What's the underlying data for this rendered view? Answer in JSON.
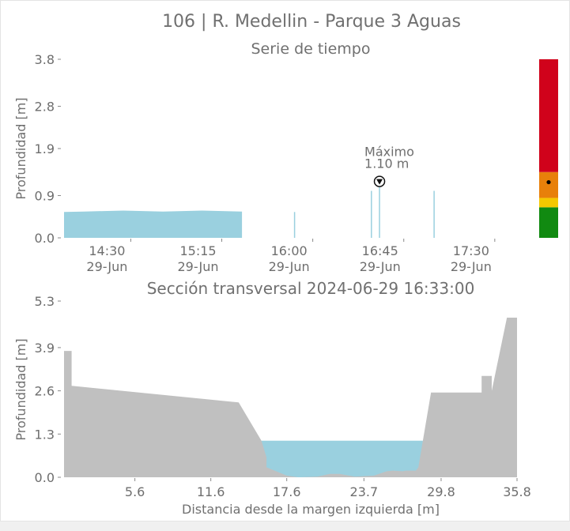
{
  "title": "106 | R. Medellin - Parque 3 Aguas",
  "chart_data": [
    {
      "type": "area",
      "title": "Serie de tiempo",
      "ylabel": "Profundidad [m]",
      "xlabel": "",
      "ylim": [
        0.0,
        3.8
      ],
      "yticks": [
        "0.0",
        "0.9",
        "1.9",
        "2.8",
        "3.8"
      ],
      "xlim": [
        "13:57",
        "17:50"
      ],
      "xticks": [
        {
          "time": "14:30",
          "label": "14:30",
          "sublabel": "29-Jun"
        },
        {
          "time": "15:15",
          "label": "15:15",
          "sublabel": "29-Jun"
        },
        {
          "time": "16:00",
          "label": "16:00",
          "sublabel": "29-Jun"
        },
        {
          "time": "16:45",
          "label": "16:45",
          "sublabel": "29-Jun"
        },
        {
          "time": "17:30",
          "label": "17:30",
          "sublabel": "29-Jun"
        }
      ],
      "series": [
        {
          "color": "#9ad0df",
          "continuous": {
            "start": "13:57",
            "end": "15:25",
            "values": [
              0.55,
              0.56,
              0.57,
              0.58,
              0.57,
              0.56,
              0.57,
              0.58,
              0.57,
              0.56
            ]
          },
          "spikes": [
            {
              "time": "15:51",
              "value": 0.55
            },
            {
              "time": "16:29",
              "value": 1.0
            },
            {
              "time": "16:33",
              "value": 1.1
            },
            {
              "time": "17:00",
              "value": 1.0
            }
          ]
        }
      ],
      "max_annotation": {
        "line1": "Máximo",
        "line2": "1.10 m",
        "time": "16:33",
        "value": 1.1
      },
      "threshold_bar": [
        {
          "from": 0.0,
          "to": 0.65,
          "color": "#118a11"
        },
        {
          "from": 0.65,
          "to": 0.85,
          "color": "#f5c800"
        },
        {
          "from": 0.85,
          "to": 1.4,
          "color": "#e8800a"
        },
        {
          "from": 1.4,
          "to": 3.8,
          "color": "#d0021b"
        }
      ],
      "current_level": 1.1
    },
    {
      "type": "area",
      "title": "Sección transversal 2024-06-29 16:33:00",
      "xlabel": "Distancia desde la margen izquierda [m]",
      "ylabel": "Profundidad [m]",
      "xlim": [
        0.0,
        35.8
      ],
      "ylim": [
        0.0,
        5.3
      ],
      "xticks": [
        "5.6",
        "11.6",
        "17.6",
        "23.7",
        "29.8",
        "35.8"
      ],
      "yticks": [
        "0.0",
        "1.3",
        "2.6",
        "3.9",
        "5.3"
      ],
      "water_level": 1.1,
      "water_color": "#9ad0df",
      "terrain_color": "#c0c0c0",
      "profile": {
        "x": [
          0.0,
          0.0,
          0.6,
          0.6,
          13.8,
          15.6,
          16.0,
          16.0,
          17.6,
          18.5,
          20.0,
          21.0,
          21.8,
          23.0,
          24.5,
          25.5,
          26.0,
          26.8,
          27.0,
          27.8,
          28.0,
          29.0,
          33.0,
          33.0,
          33.4,
          33.8,
          33.8,
          35.0,
          35.8,
          35.8
        ],
        "y": [
          0.0,
          3.8,
          3.8,
          2.75,
          2.25,
          1.1,
          0.6,
          0.3,
          0.05,
          0.0,
          0.02,
          0.1,
          0.1,
          0.02,
          0.05,
          0.18,
          0.2,
          0.18,
          0.2,
          0.2,
          0.3,
          2.55,
          2.55,
          3.05,
          3.05,
          3.05,
          2.6,
          4.8,
          4.8,
          0.0
        ]
      }
    }
  ]
}
